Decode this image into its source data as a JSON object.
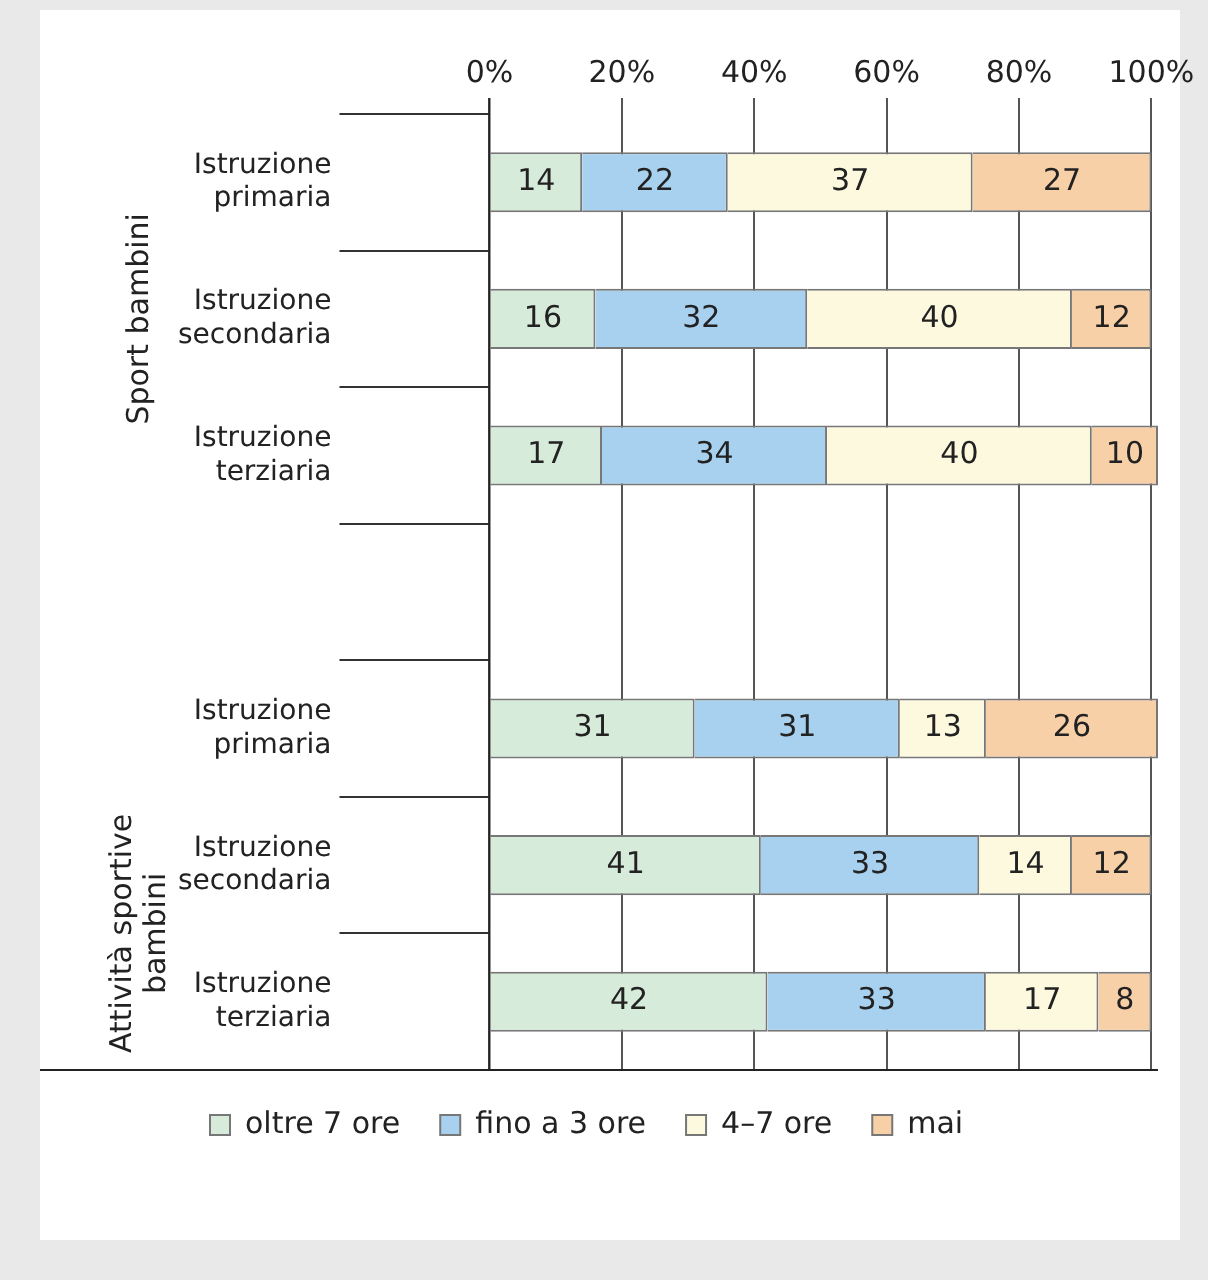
{
  "chart_data": {
    "type": "bar",
    "orientation": "horizontal",
    "stacked": true,
    "categories": [
      "Istruzione primaria",
      "Istruzione secondaria",
      "Istruzione terziaria",
      null,
      "Istruzione primaria",
      "Istruzione secondaria",
      "Istruzione terziaria"
    ],
    "series": [
      {
        "name": "oltre 7 ore",
        "color": "#d6ebd9",
        "values": [
          14,
          16,
          17,
          null,
          31,
          41,
          42
        ]
      },
      {
        "name": "fino a 3 ore",
        "color": "#a8d1f0",
        "values": [
          22,
          32,
          34,
          null,
          31,
          33,
          33
        ]
      },
      {
        "name": "4–7 ore",
        "color": "#fdf9de",
        "values": [
          37,
          40,
          40,
          null,
          13,
          14,
          17
        ]
      },
      {
        "name": "mai",
        "color": "#f8d0a8",
        "values": [
          27,
          12,
          10,
          null,
          26,
          12,
          8
        ]
      }
    ],
    "xlim": [
      0,
      101
    ],
    "xticks": [
      {
        "value": 0,
        "label": "0%"
      },
      {
        "value": 20,
        "label": "20%"
      },
      {
        "value": 40,
        "label": "40%"
      },
      {
        "value": 60,
        "label": "60%"
      },
      {
        "value": 80,
        "label": "80%"
      },
      {
        "value": 100,
        "label": "100%"
      }
    ],
    "annotations": [
      "Sport bambini",
      "Attività sportive bambini"
    ],
    "data_labels": true,
    "grid": "x",
    "legend": "bottom"
  }
}
